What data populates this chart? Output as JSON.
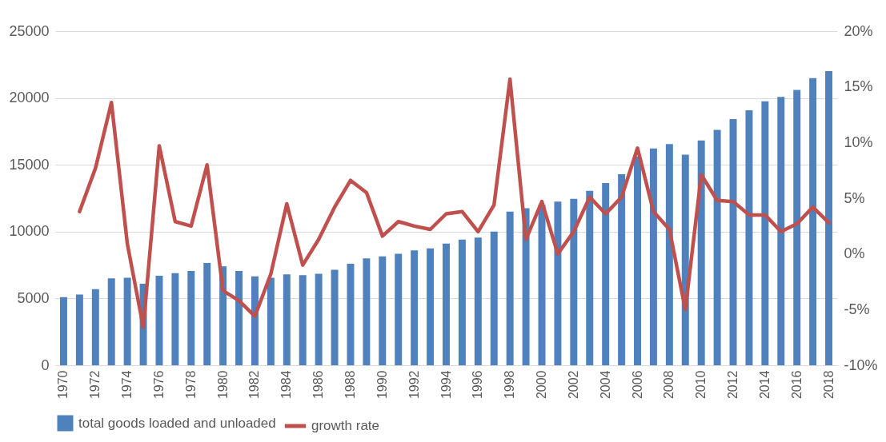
{
  "chart_data": {
    "type": "bar",
    "categories": [
      "1970",
      null,
      "1972",
      null,
      "1974",
      null,
      "1976",
      null,
      "1978",
      null,
      "1980",
      null,
      "1982",
      null,
      "1984",
      null,
      "1986",
      null,
      "1988",
      null,
      "1990",
      null,
      "1992",
      null,
      "1994",
      null,
      "1996",
      null,
      "1998",
      null,
      "2000",
      null,
      "2002",
      null,
      "2004",
      null,
      "2006",
      null,
      "2008",
      null,
      "2010",
      null,
      "2012",
      null,
      "2014",
      null,
      "2016",
      null,
      "2018"
    ],
    "series": [
      {
        "name": "total goods loaded and unloaded",
        "color": "#4f81bd",
        "values": [
          5100,
          5300,
          5700,
          6500,
          6550,
          6100,
          6700,
          6900,
          7050,
          7650,
          7400,
          7050,
          6650,
          6550,
          6800,
          6750,
          6850,
          7150,
          7600,
          8000,
          8150,
          8350,
          8600,
          8750,
          9100,
          9400,
          9550,
          10000,
          11500,
          11750,
          12000,
          12250,
          12450,
          13050,
          13630,
          14290,
          15620,
          16220,
          16550,
          15760,
          16820,
          17620,
          18420,
          19080,
          19750,
          20080,
          20610,
          21480,
          22010
        ]
      },
      {
        "name": "growth rate",
        "type": "line",
        "axis": "y2",
        "color": "#c0504d",
        "values": [
          null,
          3.8,
          7.7,
          13.6,
          0.9,
          -6.6,
          9.7,
          2.9,
          2.5,
          8.0,
          -3.3,
          -4.2,
          -5.6,
          -1.8,
          4.5,
          -1.0,
          1.3,
          4.2,
          6.6,
          5.5,
          1.6,
          2.9,
          2.5,
          2.2,
          3.6,
          3.8,
          2.0,
          4.4,
          15.7,
          1.3,
          4.7,
          0.0,
          2.0,
          5.1,
          3.6,
          5.1,
          9.5,
          3.8,
          2.2,
          -5.0,
          7.1,
          4.8,
          4.7,
          3.5,
          3.5,
          2.0,
          2.7,
          4.2,
          2.8
        ]
      }
    ],
    "ylim": [
      0,
      25000
    ],
    "yticks": [
      0,
      5000,
      10000,
      15000,
      20000,
      25000
    ],
    "y2lim": [
      -10,
      20
    ],
    "y2ticks": [
      {
        "value": -10,
        "label": "-10%"
      },
      {
        "value": -5,
        "label": "-5%"
      },
      {
        "value": 0,
        "label": "0%"
      },
      {
        "value": 5,
        "label": "5%"
      },
      {
        "value": 10,
        "label": "10%"
      },
      {
        "value": 15,
        "label": "15%"
      },
      {
        "value": 20,
        "label": "20%"
      }
    ],
    "grid": "y",
    "legend": "bottom",
    "line_style": "solid",
    "marker": "none"
  }
}
